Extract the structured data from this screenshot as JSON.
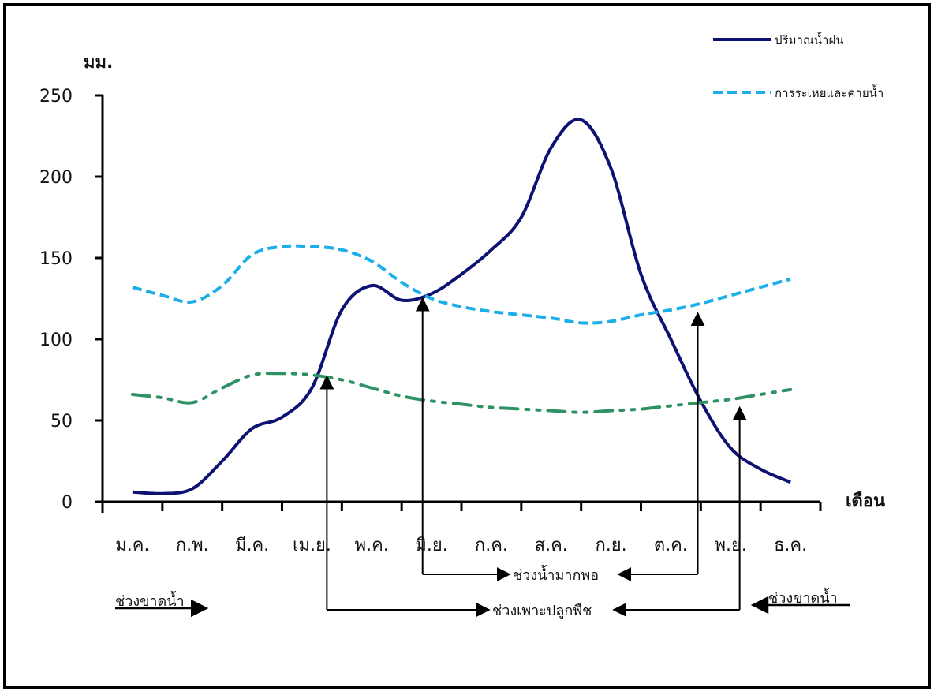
{
  "chart_data": {
    "type": "line",
    "ylabel": "มม.",
    "xlabel": "เดือน",
    "ylim": [
      0,
      250
    ],
    "yticks": [
      0,
      50,
      100,
      150,
      200,
      250
    ],
    "categories": [
      "ม.ค.",
      "ก.พ.",
      "มี.ค.",
      "เม.ย.",
      "พ.ค.",
      "มิ.ย.",
      "ก.ค.",
      "ส.ค.",
      "ก.ย.",
      "ต.ค.",
      "พ.ย.",
      "ธ.ค."
    ],
    "legend_position": "top-right",
    "grid": false,
    "series": [
      {
        "name": "ปริมาณน้ำฝน",
        "color": "#0d1272",
        "style": "solid",
        "x": [
          0.5,
          1.0,
          1.5,
          2.0,
          2.5,
          3.0,
          3.5,
          4.0,
          4.5,
          5.0,
          5.5,
          6.0,
          6.5,
          7.0,
          7.5,
          8.0,
          8.5,
          9.0,
          9.5,
          10.0,
          10.5,
          11.0,
          11.5
        ],
        "values": [
          6,
          5,
          8,
          25,
          45,
          52,
          70,
          118,
          133,
          124,
          128,
          140,
          155,
          175,
          218,
          235,
          205,
          140,
          100,
          62,
          33,
          20,
          12
        ]
      },
      {
        "name": "การระเหยและคายน้ำ",
        "color": "#1caee8",
        "style": "dashed",
        "x": [
          0.5,
          1.0,
          1.5,
          2.0,
          2.5,
          3.0,
          3.5,
          4.0,
          4.5,
          5.0,
          5.5,
          6.0,
          6.5,
          7.0,
          7.5,
          8.0,
          8.5,
          9.0,
          9.5,
          10.0,
          10.5,
          11.0,
          11.5
        ],
        "values": [
          132,
          127,
          123,
          133,
          152,
          157,
          157,
          155,
          148,
          135,
          125,
          120,
          117,
          115,
          113,
          110,
          111,
          115,
          118,
          122,
          127,
          132,
          137
        ]
      },
      {
        "color": "#2e9265",
        "style": "dash-dot-dot",
        "x": [
          0.5,
          1.0,
          1.5,
          2.0,
          2.5,
          3.0,
          3.5,
          4.0,
          4.5,
          5.0,
          5.5,
          6.0,
          6.5,
          7.0,
          7.5,
          8.0,
          8.5,
          9.0,
          9.5,
          10.0,
          10.5,
          11.0,
          11.5
        ],
        "values": [
          66,
          64,
          61,
          70,
          78,
          79,
          78,
          75,
          70,
          65,
          62,
          60,
          58,
          57,
          56,
          55,
          56,
          57,
          59,
          61,
          63,
          66,
          69
        ]
      }
    ],
    "annotations": {
      "period_dry_left": "ช่วงขาดน้ำ",
      "period_dry_right": "ช่วงขาดน้ำ",
      "period_surplus": "ช่วงน้ำมากพอ",
      "period_growing": "ช่วงเพาะปลูกพืช"
    },
    "markers": {
      "surplus_start": {
        "x": 5.35,
        "y": 125
      },
      "surplus_end": {
        "x": 9.95,
        "y": 116
      },
      "growing_start": {
        "x": 3.75,
        "y": 77
      },
      "growing_end": {
        "x": 10.65,
        "y": 58
      }
    }
  }
}
